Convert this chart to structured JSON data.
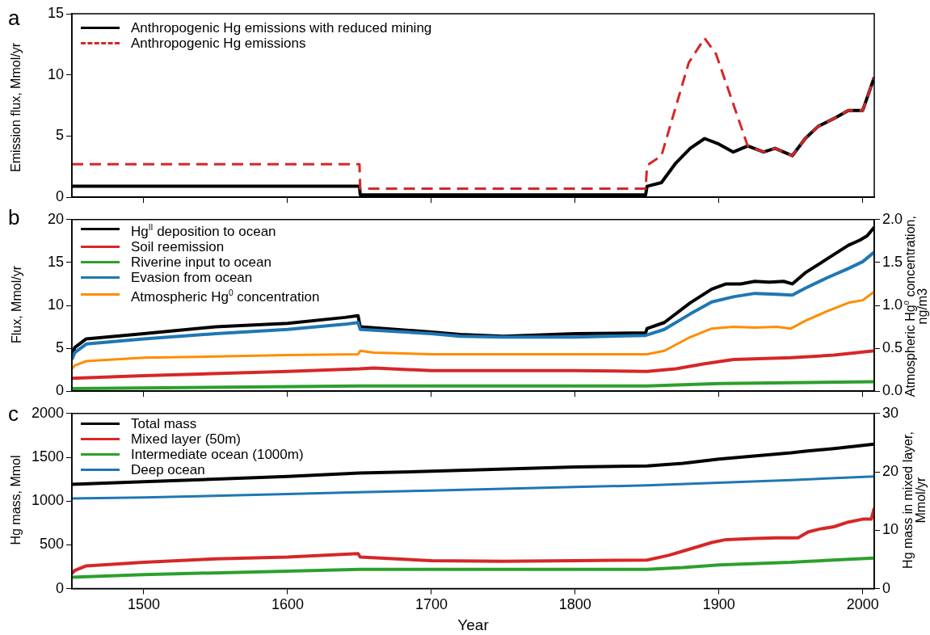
{
  "chart_data": [
    {
      "type": "line",
      "title": "a",
      "ylabel": "Emission flux, Mmol/yr",
      "xlim": [
        1450,
        2008
      ],
      "xticks": [
        1500,
        1600,
        1700,
        1800,
        1900,
        2000
      ],
      "ylim": [
        0,
        15
      ],
      "yticks": [
        0,
        5,
        10,
        15
      ],
      "tick_labels": "y",
      "grid": false,
      "legend": "top left",
      "marker": "none",
      "series": [
        {
          "name": "Anthropogenic Hg emissions with reduced mining",
          "color": "#000000",
          "x": [
            1450,
            1650,
            1650.5,
            1849,
            1850,
            1860,
            1870,
            1880,
            1890,
            1899,
            1910,
            1920,
            1931,
            1939,
            1951,
            1960,
            1969,
            1981,
            1990,
            2000,
            2008
          ],
          "values": [
            0.9,
            0.9,
            0.2,
            0.2,
            0.9,
            1.2,
            2.8,
            4.0,
            4.8,
            4.4,
            3.7,
            4.2,
            3.7,
            4.0,
            3.4,
            4.8,
            5.8,
            6.5,
            7.1,
            7.1,
            9.8
          ]
        },
        {
          "name": "Anthropogenic Hg emissions",
          "color": "#d62728",
          "line_style": "dashed",
          "x": [
            1450,
            1650,
            1650.5,
            1849,
            1850,
            1860,
            1879,
            1890,
            1898,
            1920,
            1931,
            1939,
            1951,
            1960,
            1969,
            1981,
            1990,
            2000,
            2008
          ],
          "values": [
            2.7,
            2.7,
            0.7,
            0.7,
            2.6,
            3.4,
            11.0,
            13.0,
            11.7,
            4.2,
            3.7,
            4.0,
            3.4,
            4.8,
            5.8,
            6.5,
            7.1,
            7.1,
            9.8
          ]
        }
      ]
    },
    {
      "type": "line",
      "title": "b",
      "ylabel": "Flux, Mmol/yr",
      "y2label": "Atmospheric Hg$^{0}$ concentration, ng/m3",
      "xlim": [
        1450,
        2008
      ],
      "xticks": [
        1500,
        1600,
        1700,
        1800,
        1900,
        2000
      ],
      "ylim": [
        0,
        20
      ],
      "yticks": [
        0,
        5,
        10,
        15,
        20
      ],
      "y2lim": [
        0,
        2
      ],
      "y2ticks": [
        {
          "value": 0,
          "label": "0.0"
        },
        {
          "value": 0.5,
          "label": "0.5"
        },
        {
          "value": 1,
          "label": "1.0"
        },
        {
          "value": 1.5,
          "label": "1.5"
        },
        {
          "value": 2,
          "label": "2.0"
        }
      ],
      "tick_labels": "y",
      "grid": false,
      "legend": "top left",
      "marker": "none",
      "series": [
        {
          "name": "Hg$^{II}$ deposition to ocean",
          "color": "#000000",
          "x": [
            1450,
            1452,
            1460,
            1500,
            1550,
            1600,
            1640,
            1649,
            1650.5,
            1700,
            1720,
            1750,
            1800,
            1849,
            1850,
            1862,
            1880,
            1895,
            1905,
            1915,
            1925,
            1935,
            1945,
            1951,
            1960,
            1975,
            1990,
            1998,
            2003,
            2008
          ],
          "values": [
            3.9,
            5.1,
            6.1,
            6.7,
            7.5,
            7.9,
            8.6,
            8.8,
            7.5,
            6.9,
            6.6,
            6.4,
            6.7,
            6.8,
            7.3,
            8.0,
            10.3,
            11.9,
            12.5,
            12.5,
            12.8,
            12.7,
            12.8,
            12.5,
            13.8,
            15.4,
            17.0,
            17.6,
            18.1,
            19.1
          ]
        },
        {
          "name": "Soil reemission",
          "color": "#d62728",
          "x": [
            1450,
            1500,
            1600,
            1650,
            1660,
            1700,
            1800,
            1850,
            1870,
            1890,
            1910,
            1950,
            1980,
            2008
          ],
          "values": [
            1.5,
            1.8,
            2.3,
            2.6,
            2.7,
            2.4,
            2.4,
            2.3,
            2.6,
            3.2,
            3.7,
            3.9,
            4.2,
            4.7
          ]
        },
        {
          "name": "Riverine input to ocean",
          "color": "#2ca02c",
          "x": [
            1450,
            1650,
            1850,
            1900,
            2008
          ],
          "values": [
            0.3,
            0.6,
            0.6,
            0.9,
            1.1
          ]
        },
        {
          "name": "Evasion from ocean",
          "color": "#1f77b4",
          "x": [
            1450,
            1452,
            1460,
            1500,
            1550,
            1600,
            1640,
            1649,
            1650.5,
            1700,
            1720,
            1750,
            1800,
            1849,
            1862,
            1880,
            1895,
            1910,
            1925,
            1940,
            1951,
            1960,
            1975,
            1990,
            2000,
            2008
          ],
          "values": [
            3.7,
            4.5,
            5.5,
            6.1,
            6.7,
            7.2,
            7.8,
            8.0,
            7.2,
            6.7,
            6.4,
            6.3,
            6.3,
            6.5,
            7.2,
            9.0,
            10.4,
            11.0,
            11.4,
            11.3,
            11.2,
            12.0,
            13.2,
            14.3,
            15.1,
            16.2
          ]
        },
        {
          "name": "Atmospheric Hg$^{0}$ concentration",
          "color": "#ff8c00",
          "axis": "y2",
          "x": [
            1450,
            1452,
            1460,
            1500,
            1600,
            1649,
            1650.5,
            1660,
            1700,
            1800,
            1850,
            1862,
            1880,
            1895,
            1910,
            1925,
            1940,
            1950,
            1960,
            1975,
            1990,
            2000,
            2008
          ],
          "values": [
            0.26,
            0.3,
            0.35,
            0.39,
            0.42,
            0.43,
            0.47,
            0.45,
            0.43,
            0.43,
            0.43,
            0.47,
            0.63,
            0.73,
            0.75,
            0.74,
            0.75,
            0.73,
            0.82,
            0.93,
            1.03,
            1.06,
            1.16
          ]
        }
      ]
    },
    {
      "type": "line",
      "title": "c",
      "xlabel": "Year",
      "ylabel": "Hg mass, Mmol",
      "y2label": "Hg mass in mixed layer, Mmol/yr",
      "xlim": [
        1450,
        2008
      ],
      "xticks": [
        1500,
        1600,
        1700,
        1800,
        1900,
        2000
      ],
      "ylim": [
        0,
        2000
      ],
      "yticks": [
        0,
        500,
        1000,
        1500,
        2000
      ],
      "y2lim": [
        0,
        30
      ],
      "y2ticks": [
        0,
        10,
        20,
        30
      ],
      "grid": false,
      "legend": "top left",
      "marker": "none",
      "series": [
        {
          "name": "Total mass",
          "color": "#000000",
          "x": [
            1450,
            1500,
            1600,
            1650,
            1700,
            1800,
            1850,
            1875,
            1900,
            1950,
            1960,
            1980,
            2008
          ],
          "values": [
            1190,
            1220,
            1280,
            1320,
            1340,
            1390,
            1400,
            1430,
            1480,
            1550,
            1570,
            1600,
            1650
          ]
        },
        {
          "name": "Mixed layer (50m)",
          "color": "#d62728",
          "axis": "y2",
          "x": [
            1450,
            1452,
            1460,
            1500,
            1550,
            1600,
            1649,
            1650.5,
            1700,
            1750,
            1800,
            1850,
            1865,
            1880,
            1895,
            1905,
            1925,
            1940,
            1955,
            1962,
            1970,
            1980,
            1990,
            2000,
            2006,
            2008
          ],
          "values": [
            2.6,
            3.1,
            3.9,
            4.5,
            5.1,
            5.4,
            6.0,
            5.4,
            4.8,
            4.7,
            4.8,
            4.9,
            5.7,
            6.8,
            7.9,
            8.4,
            8.6,
            8.7,
            8.7,
            9.7,
            10.2,
            10.6,
            11.4,
            11.9,
            11.9,
            13.8
          ]
        },
        {
          "name": "Intermediate ocean (1000m)",
          "color": "#2ca02c",
          "x": [
            1450,
            1500,
            1600,
            1650,
            1700,
            1800,
            1850,
            1875,
            1900,
            1950,
            1960,
            2008
          ],
          "values": [
            130,
            160,
            200,
            220,
            220,
            220,
            220,
            240,
            270,
            300,
            310,
            350
          ]
        },
        {
          "name": "Deep ocean",
          "color": "#1f77b4",
          "x": [
            1450,
            1500,
            1600,
            1650,
            1700,
            1800,
            1850,
            1900,
            1950,
            2008
          ],
          "values": [
            1030,
            1040,
            1080,
            1100,
            1120,
            1160,
            1180,
            1210,
            1240,
            1280
          ]
        }
      ]
    }
  ]
}
